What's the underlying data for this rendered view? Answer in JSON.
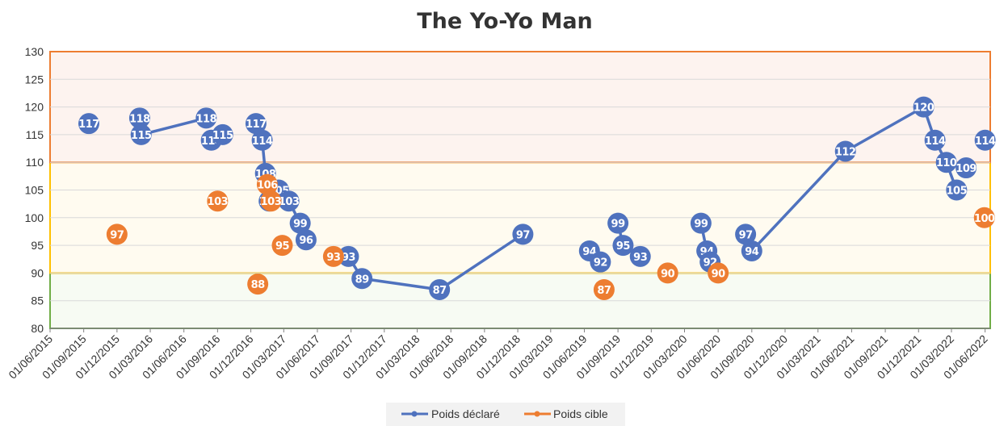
{
  "chart_data": {
    "type": "scatter",
    "title": "The Yo-Yo Man",
    "ylim": [
      80,
      130
    ],
    "yticks": [
      80,
      85,
      90,
      95,
      100,
      105,
      110,
      115,
      120,
      125,
      130
    ],
    "xlim": [
      "2015-06-01",
      "2022-06-15"
    ],
    "xticks": [
      "01/06/2015",
      "01/09/2015",
      "01/12/2015",
      "01/03/2016",
      "01/06/2016",
      "01/09/2016",
      "01/12/2016",
      "01/03/2017",
      "01/06/2017",
      "01/09/2017",
      "01/12/2017",
      "01/03/2018",
      "01/06/2018",
      "01/09/2018",
      "01/12/2018",
      "01/03/2019",
      "01/06/2019",
      "01/09/2019",
      "01/12/2019",
      "01/03/2020",
      "01/06/2020",
      "01/09/2020",
      "01/12/2020",
      "01/03/2021",
      "01/06/2021",
      "01/09/2021",
      "01/12/2021",
      "01/03/2022",
      "01/06/2022"
    ],
    "bands": [
      {
        "from": 80,
        "to": 90,
        "fill": "#f7fbf3",
        "stroke": "#70ad47"
      },
      {
        "from": 90,
        "to": 110,
        "fill": "#fffbf0",
        "stroke": "#ffc000"
      },
      {
        "from": 110,
        "to": 130,
        "fill": "#fdf3ef",
        "stroke": "#ed7d31"
      }
    ],
    "series": [
      {
        "name": "Poids déclaré",
        "color": "#4f72be",
        "segments": [
          [
            [
              "2015-09-15",
              117
            ]
          ],
          [
            [
              "2016-02-01",
              118
            ],
            [
              "2016-02-05",
              115
            ],
            [
              "2016-08-01",
              118
            ]
          ],
          [
            [
              "2016-08-15",
              114
            ],
            [
              "2016-09-15",
              115
            ]
          ],
          [
            [
              "2016-12-15",
              117
            ],
            [
              "2017-01-01",
              114
            ],
            [
              "2017-01-10",
              108
            ],
            [
              "2017-01-20",
              103
            ]
          ],
          [
            [
              "2017-02-15",
              105
            ],
            [
              "2017-03-15",
              103
            ],
            [
              "2017-04-15",
              99
            ],
            [
              "2017-05-01",
              96
            ]
          ],
          [
            [
              "2017-08-25",
              93
            ],
            [
              "2017-10-01",
              89
            ],
            [
              "2018-05-01",
              87
            ],
            [
              "2018-12-15",
              97
            ]
          ],
          [
            [
              "2019-06-15",
              94
            ],
            [
              "2019-07-15",
              92
            ]
          ],
          [
            [
              "2019-09-01",
              99
            ],
            [
              "2019-09-15",
              95
            ],
            [
              "2019-11-01",
              93
            ]
          ],
          [
            [
              "2020-04-15",
              99
            ],
            [
              "2020-05-01",
              94
            ],
            [
              "2020-05-10",
              92
            ]
          ],
          [
            [
              "2020-08-15",
              97
            ],
            [
              "2020-09-01",
              94
            ],
            [
              "2021-05-15",
              112
            ],
            [
              "2021-12-15",
              120
            ],
            [
              "2022-01-15",
              114
            ],
            [
              "2022-02-15",
              110
            ],
            [
              "2022-03-15",
              105
            ]
          ],
          [
            [
              "2022-04-10",
              109
            ]
          ],
          [
            [
              "2022-06-01",
              114
            ]
          ]
        ]
      },
      {
        "name": "Poids cible",
        "color": "#ed7d31",
        "points": [
          [
            "2015-12-01",
            97
          ],
          [
            "2016-09-01",
            103
          ],
          [
            "2016-12-20",
            88
          ],
          [
            "2017-01-15",
            106
          ],
          [
            "2017-01-25",
            103
          ],
          [
            "2017-02-25",
            95
          ],
          [
            "2017-07-15",
            93
          ],
          [
            "2019-07-25",
            87
          ],
          [
            "2020-01-15",
            90
          ],
          [
            "2020-06-01",
            90
          ],
          [
            "2022-05-30",
            100
          ]
        ]
      }
    ]
  }
}
